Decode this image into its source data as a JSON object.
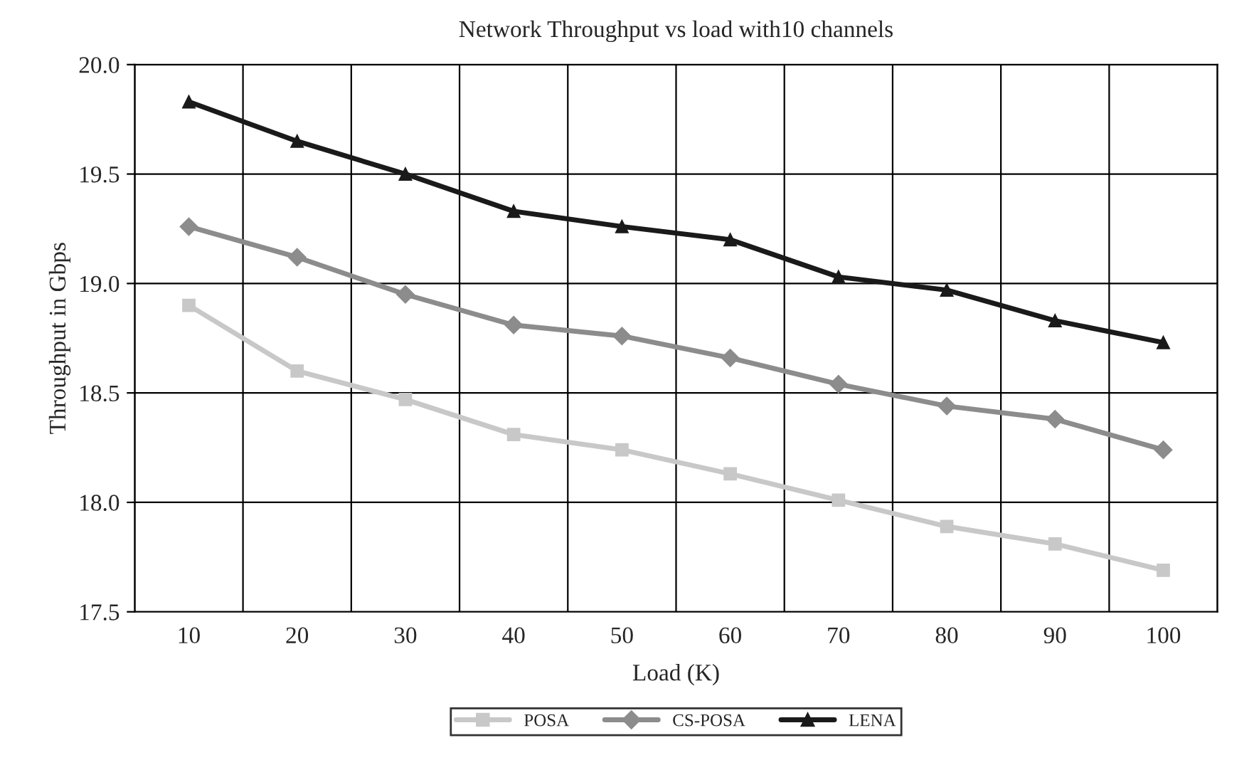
{
  "chart_data": {
    "type": "line",
    "title": "Network Throughput vs load with10 channels",
    "xlabel": "Load (K)",
    "ylabel": "Throughput in Gbps",
    "categories": [
      "10",
      "20",
      "30",
      "40",
      "50",
      "60",
      "70",
      "80",
      "90",
      "100"
    ],
    "series": [
      {
        "name": "POSA",
        "color": "#c8c8c8",
        "marker": "square",
        "values": [
          18.9,
          18.6,
          18.47,
          18.31,
          18.24,
          18.13,
          18.01,
          17.89,
          17.81,
          17.69
        ]
      },
      {
        "name": "CS-POSA",
        "color": "#8c8c8c",
        "marker": "diamond",
        "values": [
          19.26,
          19.12,
          18.95,
          18.81,
          18.76,
          18.66,
          18.54,
          18.44,
          18.38,
          18.24
        ]
      },
      {
        "name": "LENA",
        "color": "#1a1a1a",
        "marker": "triangle",
        "values": [
          19.83,
          19.65,
          19.5,
          19.33,
          19.26,
          19.2,
          19.03,
          18.97,
          18.83,
          18.73
        ]
      }
    ],
    "ylim": [
      17.5,
      20.0
    ],
    "yticks": [
      {
        "value": 17.5,
        "label": "17.5"
      },
      {
        "value": 18.0,
        "label": "18.0"
      },
      {
        "value": 18.5,
        "label": "18.5"
      },
      {
        "value": 19.0,
        "label": "19.0"
      },
      {
        "value": 19.5,
        "label": "19.5"
      },
      {
        "value": 20.0,
        "label": "20.0"
      }
    ],
    "grid": true,
    "legend": "bottom",
    "line_style": "solid"
  }
}
